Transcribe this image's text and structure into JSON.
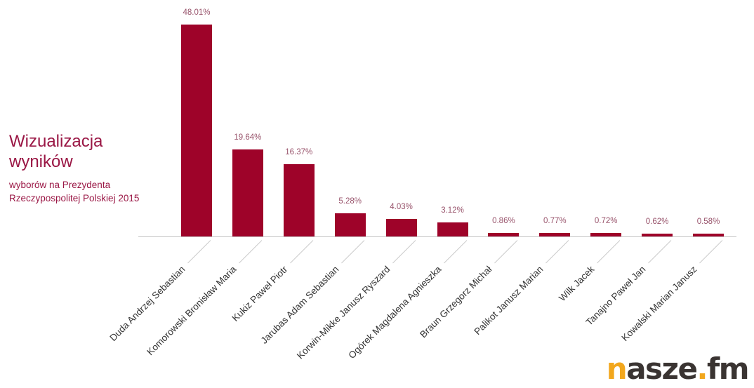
{
  "header": {
    "title": "Wizualizacja wyników",
    "subtitle_line1": "wyborów na Prezydenta",
    "subtitle_line2": "Rzeczypospolitej Polskiej 2015",
    "title_color": "#9a1745"
  },
  "chart_data": {
    "type": "bar",
    "orientation": "vertical",
    "title": "Wizualizacja wyników",
    "subtitle": "wyborów na Prezydenta Rzeczypospolitej Polskiej 2015",
    "xlabel": "",
    "ylabel": "",
    "ylim": [
      0,
      48.01
    ],
    "grid": false,
    "legend": false,
    "categories": [
      "Duda Andrzej Sebastian",
      "Komorowski Bronisław Maria",
      "Kukiz Paweł Piotr",
      "Jarubas Adam Sebastian",
      "Korwin-Mikke Janusz Ryszard",
      "Ogórek Magdalena Agnieszka",
      "Braun Grzegorz Michał",
      "Palikot Janusz Marian",
      "Wilk Jacek",
      "Tanajno Paweł Jan",
      "Kowalski Marian Janusz"
    ],
    "values": [
      48.01,
      19.64,
      16.37,
      5.28,
      4.03,
      3.12,
      0.86,
      0.77,
      0.72,
      0.62,
      0.58
    ],
    "value_labels": [
      "48.01%",
      "19.64%",
      "16.37%",
      "5.28%",
      "4.03%",
      "3.12%",
      "0.86%",
      "0.77%",
      "0.72%",
      "0.62%",
      "0.58%"
    ],
    "bar_color": "#9e0329",
    "value_label_color": "#98536b",
    "category_label_color": "#333333",
    "axis_line_color": "#c4c4c4",
    "tick_color": "#cccccc"
  },
  "logo": {
    "parts": [
      {
        "text": "n",
        "color": "#f2a71d"
      },
      {
        "text": "asze",
        "color": "#3a3432"
      },
      {
        "text": ".",
        "color": "#f2a71d"
      },
      {
        "text": "fm",
        "color": "#3a3432"
      }
    ]
  }
}
